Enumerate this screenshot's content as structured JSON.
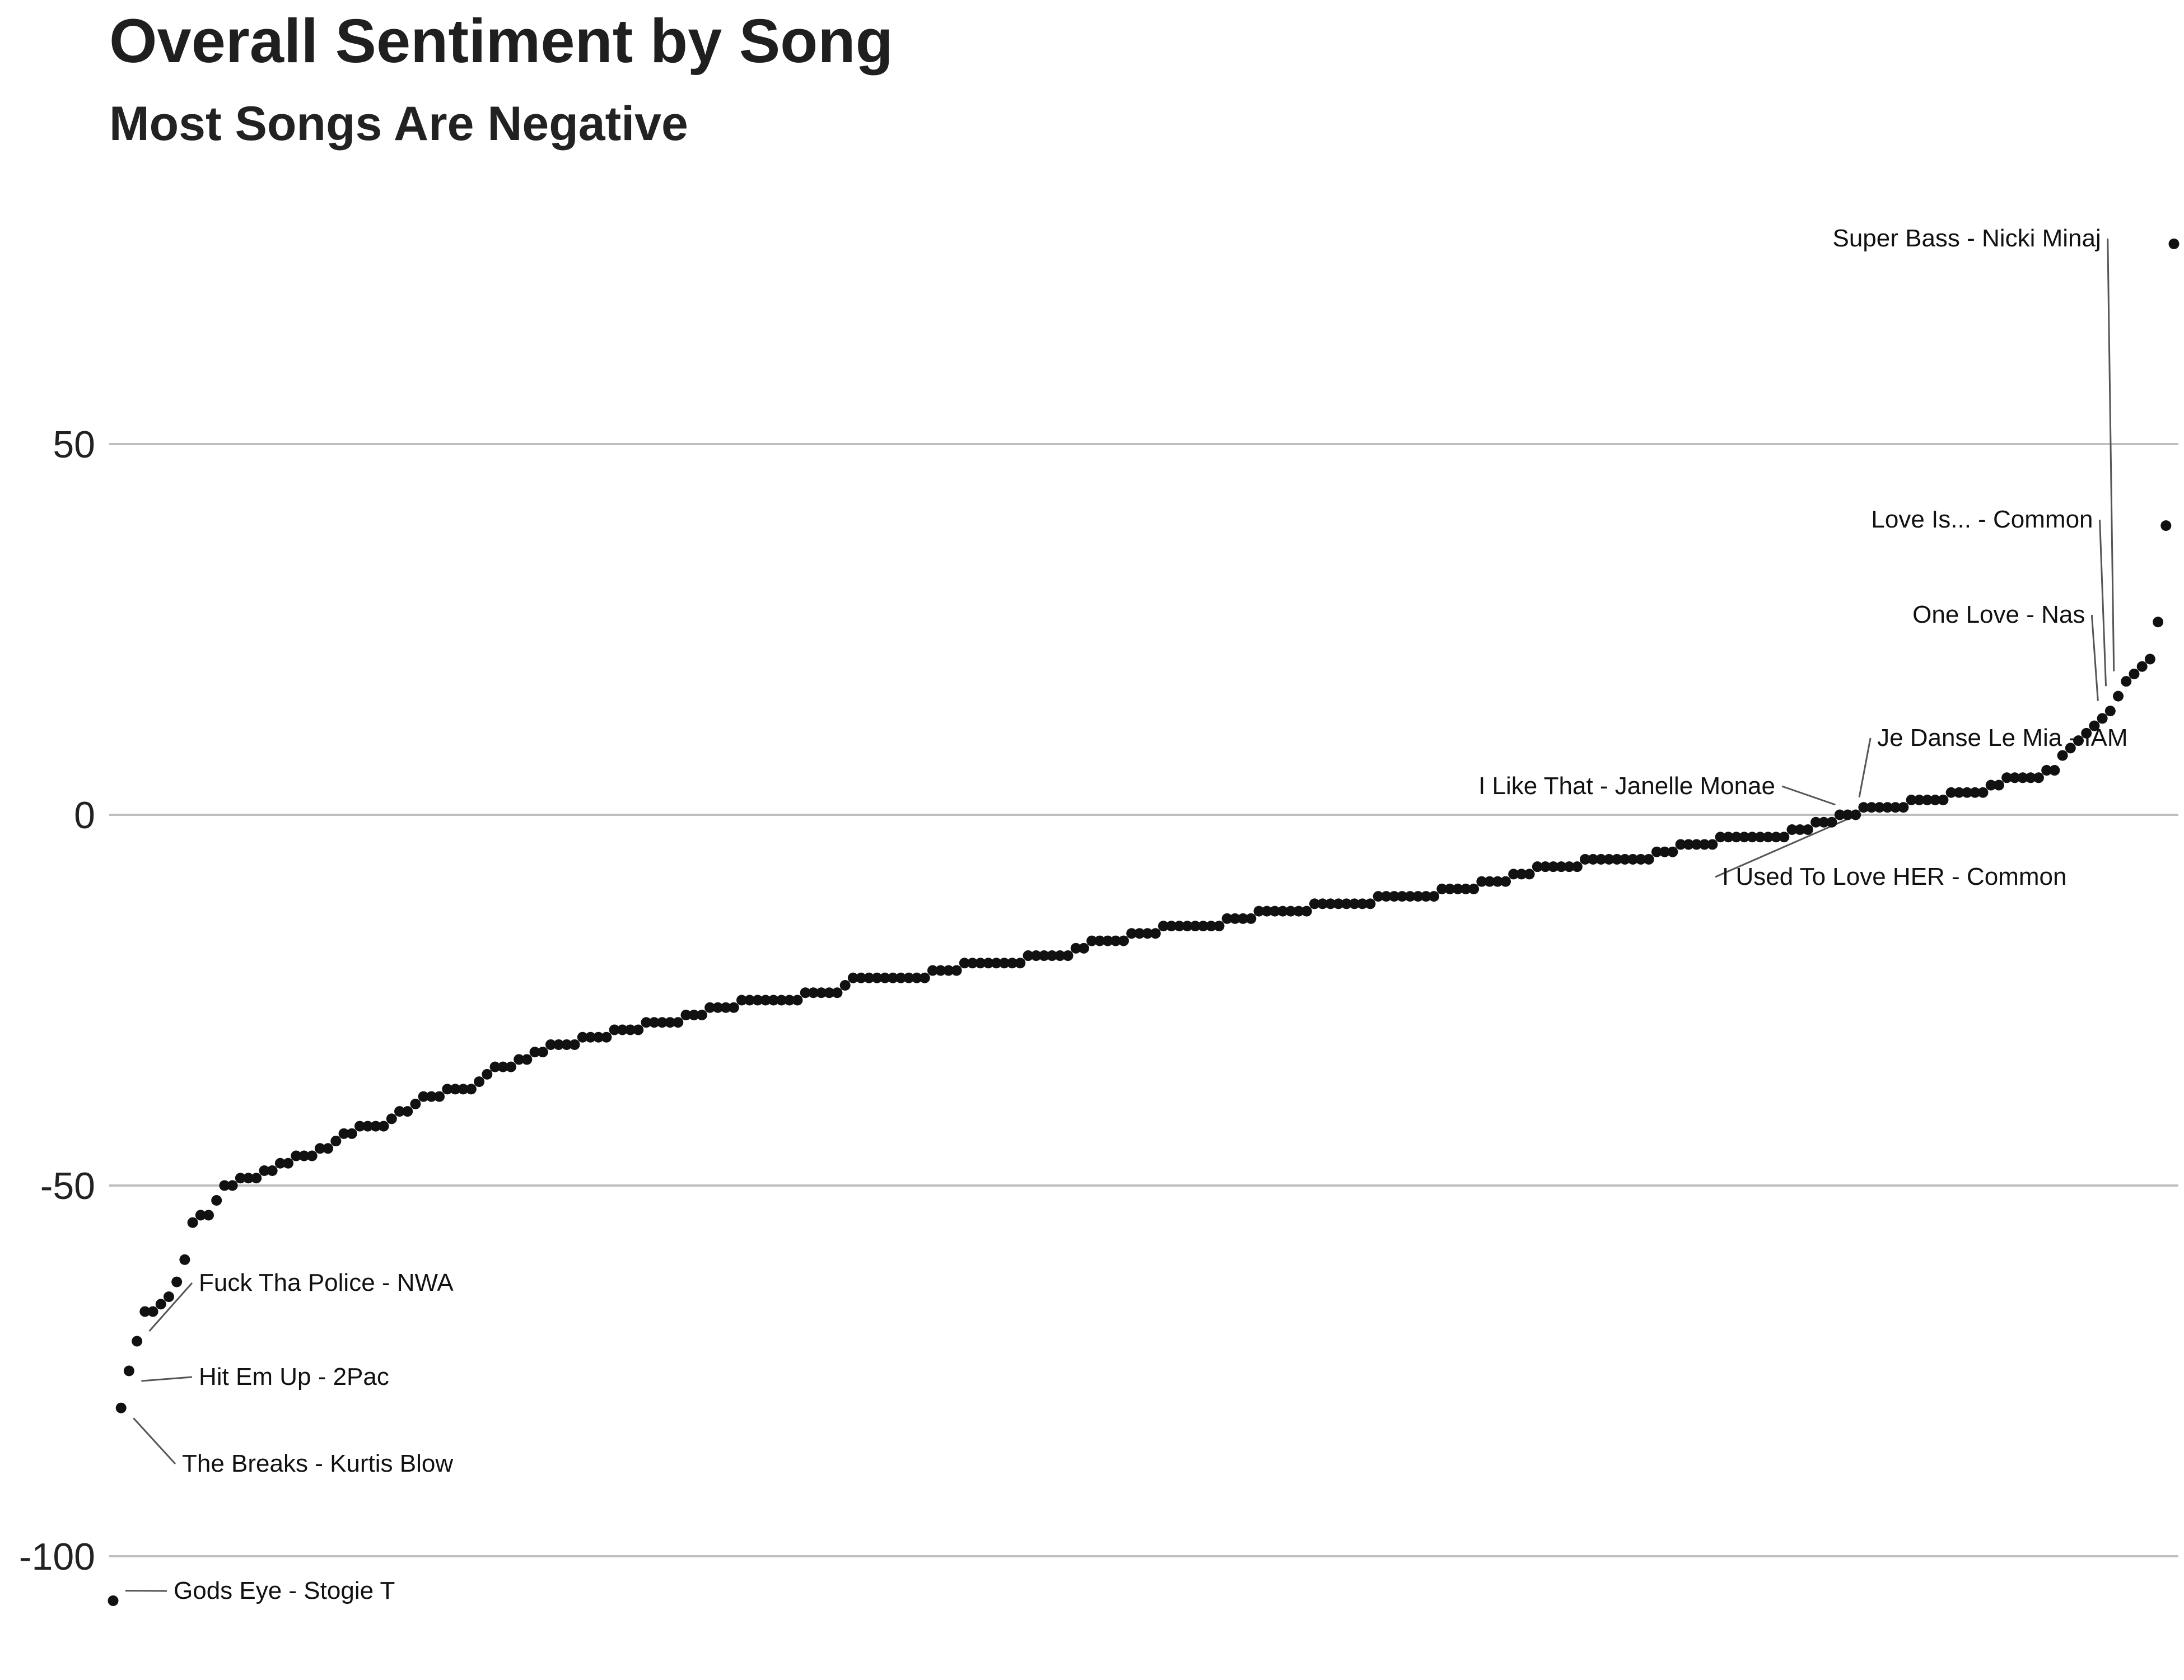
{
  "chart_data": {
    "type": "scatter",
    "title": "Overall Sentiment by Song",
    "subtitle": "Most Songs Are Negative",
    "xlabel": "",
    "ylabel": "",
    "ylim": [
      -112,
      80
    ],
    "y_ticks": [
      50,
      0,
      -50,
      -100
    ],
    "y_tick_labels": [
      "50",
      "0",
      "-50",
      "-100"
    ],
    "grid": "horizontal major lines",
    "legend": "none",
    "point_color": "#111111",
    "grid_color": "#bfbfbf",
    "x_count": 254,
    "values": [
      -106,
      -80,
      -75,
      -71,
      -67,
      -67,
      -66,
      -65,
      -63,
      -60,
      -55,
      -54,
      -54,
      -52,
      -50,
      -50,
      -49,
      -49,
      -49,
      -48,
      -48,
      -47,
      -47,
      -46,
      -46,
      -46,
      -45,
      -45,
      -44,
      -43,
      -43,
      -42,
      -42,
      -42,
      -42,
      -41,
      -40,
      -40,
      -39,
      -38,
      -38,
      -38,
      -37,
      -37,
      -37,
      -37,
      -36,
      -35,
      -34,
      -34,
      -34,
      -33,
      -33,
      -32,
      -32,
      -31,
      -31,
      -31,
      -31,
      -30,
      -30,
      -30,
      -30,
      -29,
      -29,
      -29,
      -29,
      -28,
      -28,
      -28,
      -28,
      -28,
      -27,
      -27,
      -27,
      -26,
      -26,
      -26,
      -26,
      -25,
      -25,
      -25,
      -25,
      -25,
      -25,
      -25,
      -25,
      -24,
      -24,
      -24,
      -24,
      -24,
      -23,
      -22,
      -22,
      -22,
      -22,
      -22,
      -22,
      -22,
      -22,
      -22,
      -22,
      -21,
      -21,
      -21,
      -21,
      -20,
      -20,
      -20,
      -20,
      -20,
      -20,
      -20,
      -20,
      -19,
      -19,
      -19,
      -19,
      -19,
      -19,
      -18,
      -18,
      -17,
      -17,
      -17,
      -17,
      -17,
      -16,
      -16,
      -16,
      -16,
      -15,
      -15,
      -15,
      -15,
      -15,
      -15,
      -15,
      -15,
      -14,
      -14,
      -14,
      -14,
      -13,
      -13,
      -13,
      -13,
      -13,
      -13,
      -13,
      -12,
      -12,
      -12,
      -12,
      -12,
      -12,
      -12,
      -12,
      -11,
      -11,
      -11,
      -11,
      -11,
      -11,
      -11,
      -11,
      -10,
      -10,
      -10,
      -10,
      -10,
      -9,
      -9,
      -9,
      -9,
      -8,
      -8,
      -8,
      -7,
      -7,
      -7,
      -7,
      -7,
      -7,
      -6,
      -6,
      -6,
      -6,
      -6,
      -6,
      -6,
      -6,
      -6,
      -5,
      -5,
      -5,
      -4,
      -4,
      -4,
      -4,
      -4,
      -3,
      -3,
      -3,
      -3,
      -3,
      -3,
      -3,
      -3,
      -3,
      -2,
      -2,
      -2,
      -1,
      -1,
      -1,
      0,
      0,
      0,
      1,
      1,
      1,
      1,
      1,
      1,
      2,
      2,
      2,
      2,
      2,
      3,
      3,
      3,
      3,
      3,
      4,
      4,
      5,
      5,
      5,
      5,
      5,
      6,
      6,
      8,
      9,
      10,
      11,
      12,
      13,
      14,
      16,
      18,
      19,
      20,
      21,
      26,
      39,
      77
    ],
    "annotations": [
      {
        "label": "Super Bass - Nicki Minaj",
        "index": 253
      },
      {
        "label": "Love Is... - Common",
        "index": 252
      },
      {
        "label": "One Love - Nas",
        "index": 251
      },
      {
        "label": "Je Danse Le Mia - IAM",
        "index": 221
      },
      {
        "label": "I Like That - Janelle Monae",
        "index": 218
      },
      {
        "label": "I Used To Love HER - Common",
        "index": 220
      },
      {
        "label": "Fuck Tha Police - NWA",
        "index": 3
      },
      {
        "label": "Hit Em Up - 2Pac",
        "index": 2
      },
      {
        "label": "The Breaks - Kurtis Blow",
        "index": 1
      },
      {
        "label": "Gods Eye - Stogie T",
        "index": 0
      }
    ]
  }
}
